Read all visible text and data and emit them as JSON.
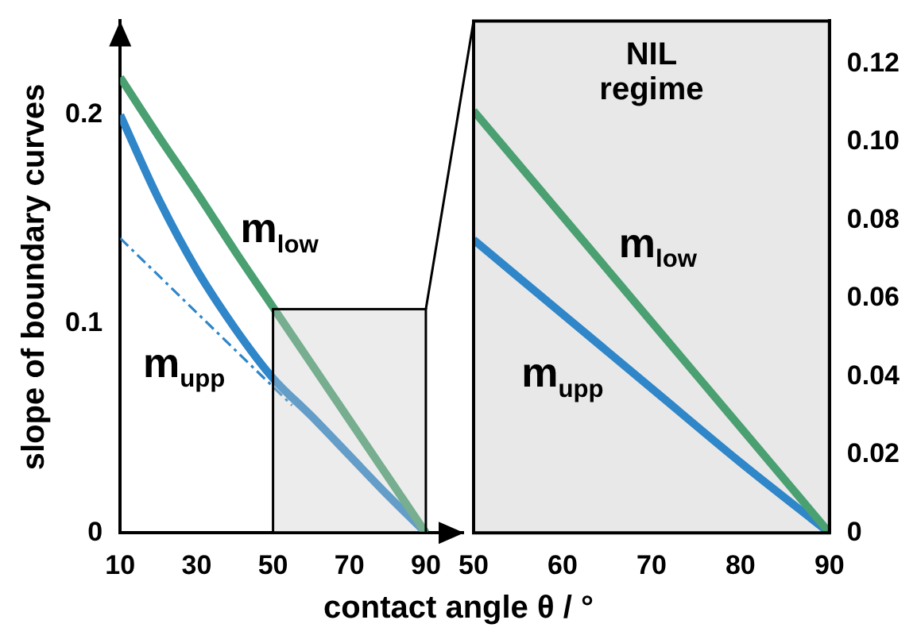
{
  "chart_data": [
    {
      "type": "line",
      "xlabel": "contact angle θ / °",
      "ylabel": "slope of boundary curves",
      "xlim": [
        10,
        100
      ],
      "xticks": [
        10,
        30,
        50,
        70,
        90
      ],
      "ylim": [
        0,
        0.245
      ],
      "yticks": [
        0,
        0.1,
        0.2
      ],
      "grid": false,
      "legend": false,
      "marker": "none",
      "series": [
        {
          "name": "m$_{low}$",
          "color": "#4aa070",
          "x": [
            10,
            20,
            30,
            40,
            50,
            60,
            70,
            80,
            90
          ],
          "values": [
            0.218,
            0.19,
            0.163,
            0.135,
            0.108,
            0.081,
            0.054,
            0.027,
            0
          ]
        },
        {
          "name": "m$_{upp}$",
          "color": "#2f86c8",
          "x": [
            10,
            20,
            30,
            40,
            50,
            60,
            70,
            80,
            90
          ],
          "values": [
            0.2,
            0.16,
            0.126,
            0.098,
            0.074,
            0.056,
            0.037,
            0.018,
            0
          ]
        },
        {
          "color": "#2f86c8",
          "line_style": "dashed",
          "x": [
            10,
            55
          ],
          "values": [
            0.141,
            0.061
          ]
        }
      ]
    },
    {
      "type": "line",
      "xlim": [
        50,
        90
      ],
      "xticks": [
        50,
        60,
        70,
        80,
        90
      ],
      "y2lim": [
        0,
        0.131
      ],
      "y2ticks": [
        0,
        0.02,
        0.04,
        0.06,
        {
          "value": 0.1,
          "label": "0.10"
        },
        0.08,
        0.12
      ],
      "grid": false,
      "legend": false,
      "marker": "none",
      "bands": [
        {
          "axis": "x",
          "from": 50,
          "to": 90,
          "label": "NIL regime",
          "color": "#e8e8e8"
        }
      ],
      "series": [
        {
          "name": "m$_{low}$",
          "color": "#4aa070",
          "axis": "y2",
          "x": [
            50,
            60,
            70,
            80,
            90
          ],
          "values": [
            0.108,
            0.081,
            0.054,
            0.027,
            0
          ]
        },
        {
          "name": "m$_{upp}$",
          "color": "#2f86c8",
          "axis": "y2",
          "x": [
            50,
            60,
            70,
            80,
            90
          ],
          "values": [
            0.075,
            0.056,
            0.037,
            0.018,
            0
          ]
        }
      ]
    }
  ]
}
